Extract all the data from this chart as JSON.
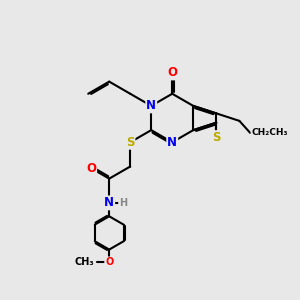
{
  "background_color": "#e8e8e8",
  "figsize": [
    3.0,
    3.0
  ],
  "dpi": 100,
  "atom_colors": {
    "C": "#000000",
    "N": "#0000ee",
    "O": "#ff0000",
    "S": "#bbaa00",
    "H": "#888888"
  },
  "bond_color": "#000000",
  "bond_width": 1.5,
  "font_size_atom": 8.5,
  "font_size_small": 7.0
}
